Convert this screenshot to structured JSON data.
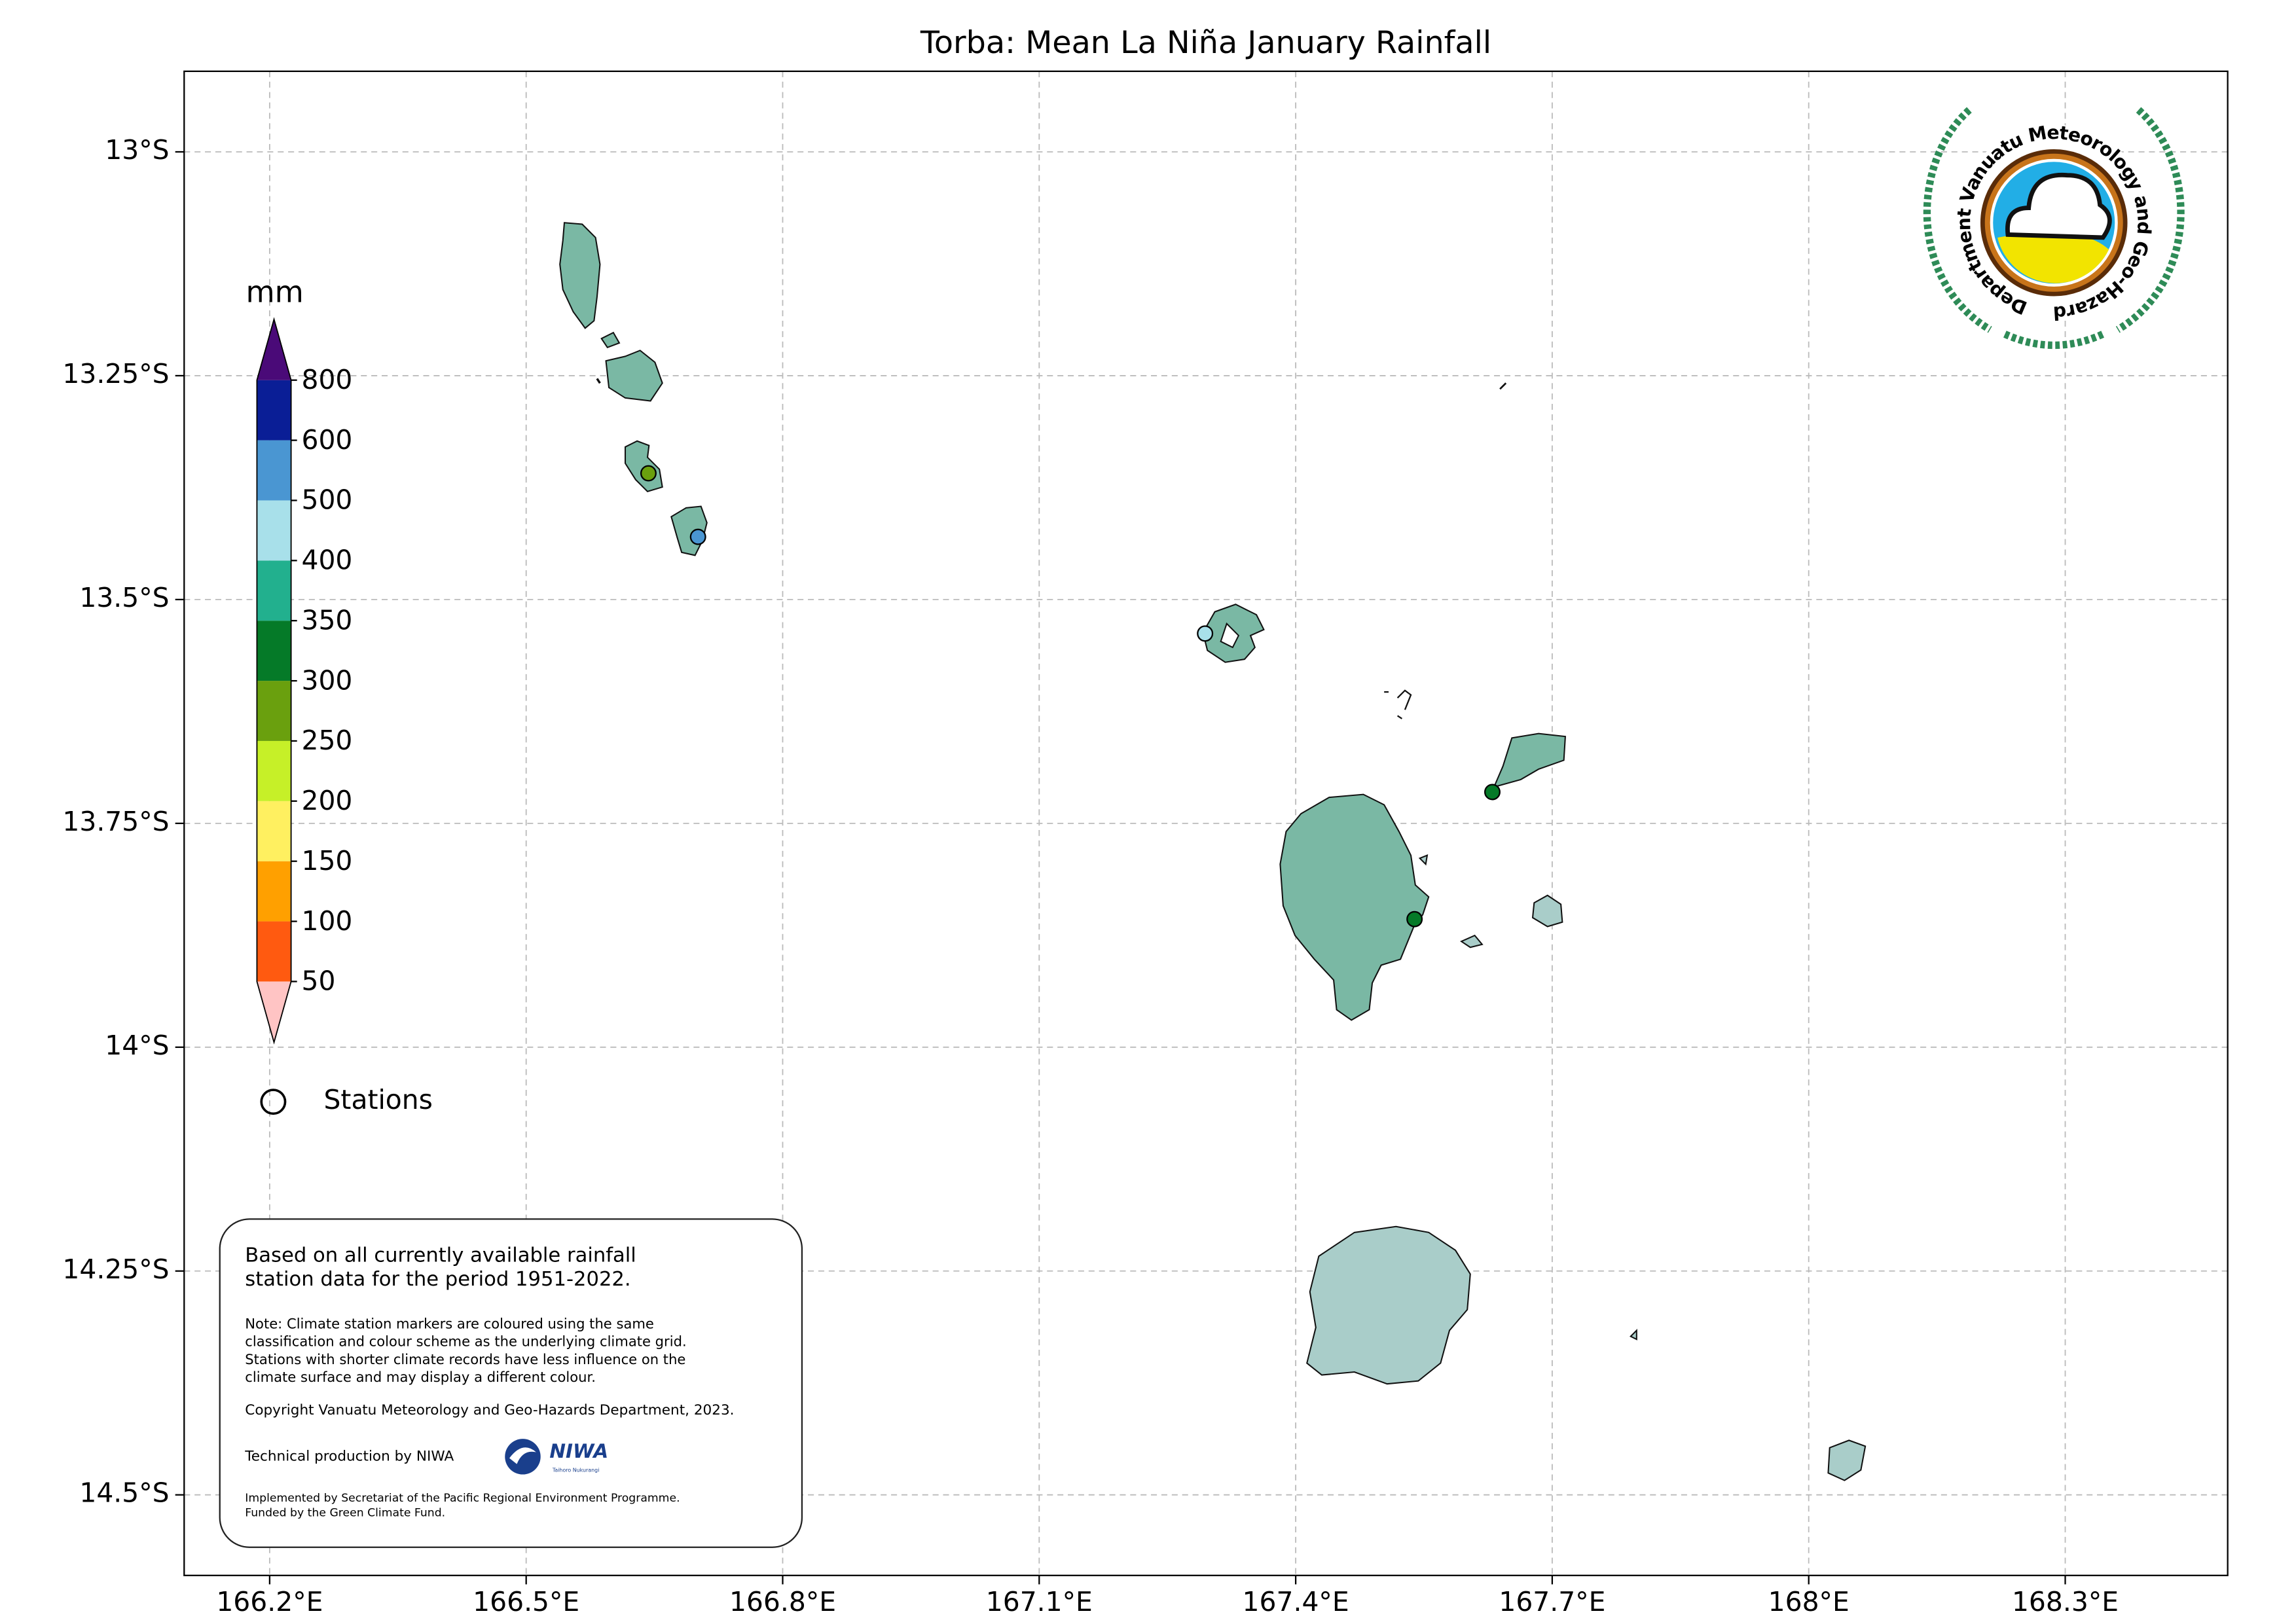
{
  "chart_data": {
    "type": "map",
    "title": "Torba: Mean La Niña January Rainfall",
    "xlim": [
      166.1,
      168.49
    ],
    "ylim": [
      -14.59,
      -12.91
    ],
    "xticks": [
      {
        "value": 166.2,
        "label": "166.2°E"
      },
      {
        "value": 166.5,
        "label": "166.5°E"
      },
      {
        "value": 166.8,
        "label": "166.8°E"
      },
      {
        "value": 167.1,
        "label": "167.1°E"
      },
      {
        "value": 167.4,
        "label": "167.4°E"
      },
      {
        "value": 167.7,
        "label": "167.7°E"
      },
      {
        "value": 168.0,
        "label": "168°E"
      },
      {
        "value": 168.3,
        "label": "168.3°E"
      }
    ],
    "yticks": [
      {
        "value": -13.0,
        "label": "13°S"
      },
      {
        "value": -13.25,
        "label": "13.25°S"
      },
      {
        "value": -13.5,
        "label": "13.5°S"
      },
      {
        "value": -13.75,
        "label": "13.75°S"
      },
      {
        "value": -14.0,
        "label": "14°S"
      },
      {
        "value": -14.25,
        "label": "14.25°S"
      },
      {
        "value": -14.5,
        "label": "14.5°S"
      }
    ],
    "grid": true,
    "colorbar": {
      "label": "mm",
      "levels": [
        50,
        100,
        150,
        200,
        250,
        300,
        350,
        400,
        500,
        600,
        800
      ],
      "colors": [
        "#ffc4c4",
        "#ff5a10",
        "#ffa000",
        "#fff060",
        "#c6f028",
        "#6aa00e",
        "#057a28",
        "#22b08e",
        "#a8e0ea",
        "#4a96d2",
        "#0a1e96",
        "#4a0a78"
      ]
    },
    "stations": {
      "name": "Stations",
      "lon": [
        166.643,
        166.701,
        167.294,
        167.63,
        167.539
      ],
      "lat": [
        -13.359,
        -13.43,
        -13.538,
        -13.715,
        -13.857
      ],
      "colors": [
        "#6aa00e",
        "#4a96d2",
        "#a8e0ea",
        "#057a28",
        "#057a28"
      ]
    },
    "info_box": {
      "summary": [
        "Based on all currently available rainfall",
        "station data for the period 1951-2022."
      ],
      "note": [
        "Note: Climate station markers are coloured using the same",
        "classification and colour scheme as the underlying climate grid.",
        "Stations with shorter climate records have less influence on the",
        "climate surface and may display a different colour."
      ],
      "copyright": "Copyright Vanuatu Meteorology and Geo-Hazards Department, 2023.",
      "technical": "Technical production by NIWA",
      "niwa": "NIWA",
      "niwa_sub": "Taihoro Nukurangi",
      "implemented": [
        "Implemented by Secretariat of the Pacific Regional Environment Programme.",
        "Funded by the Green Climate Fund."
      ]
    },
    "logo_text": "Department Vanuatu Meteorology and Geo-Hazards"
  }
}
